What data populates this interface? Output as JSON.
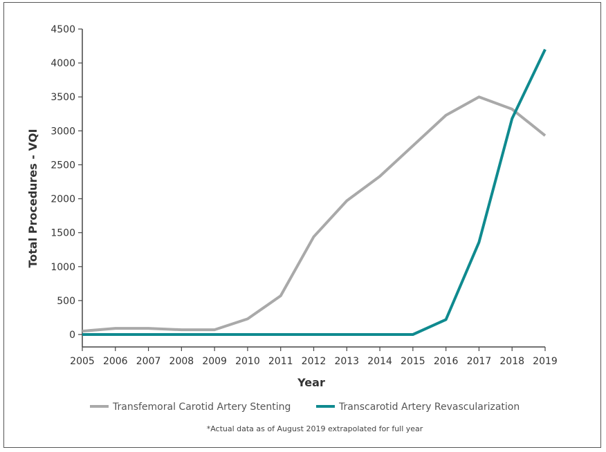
{
  "chart_data": {
    "type": "line",
    "title": "",
    "xlabel": "Year",
    "ylabel": "Total Procedures - VQI",
    "x": [
      2005,
      2006,
      2007,
      2008,
      2009,
      2010,
      2011,
      2012,
      2013,
      2014,
      2015,
      2016,
      2017,
      2018,
      2019
    ],
    "x_tick_labels": [
      "2005",
      "2006",
      "2007",
      "2008",
      "2009",
      "2010",
      "2011",
      "2012",
      "2013",
      "2014",
      "2015",
      "2016",
      "2017",
      "2018",
      "2019"
    ],
    "ylim": [
      0,
      4500
    ],
    "y_ticks": [
      0,
      500,
      1000,
      1500,
      2000,
      2500,
      3000,
      3500,
      4000,
      4500
    ],
    "y_tick_labels": [
      "0",
      "500",
      "1000",
      "1500",
      "2000",
      "2500",
      "3000",
      "3500",
      "4000",
      "4500"
    ],
    "grid": false,
    "legend_position": "bottom",
    "series": [
      {
        "name": "Transfemoral Carotid Artery Stenting",
        "color": "#a9a9a9",
        "values": [
          50,
          90,
          90,
          70,
          70,
          230,
          570,
          1440,
          1970,
          2330,
          2780,
          3230,
          3500,
          3320,
          2930
        ]
      },
      {
        "name": "Transcarotid Artery Revascularization",
        "color": "#0f8a8f",
        "values": [
          0,
          0,
          0,
          0,
          0,
          0,
          0,
          0,
          0,
          0,
          0,
          220,
          1360,
          3180,
          4200
        ]
      }
    ],
    "footnote": "*Actual data as of August 2019 extrapolated for full year"
  }
}
